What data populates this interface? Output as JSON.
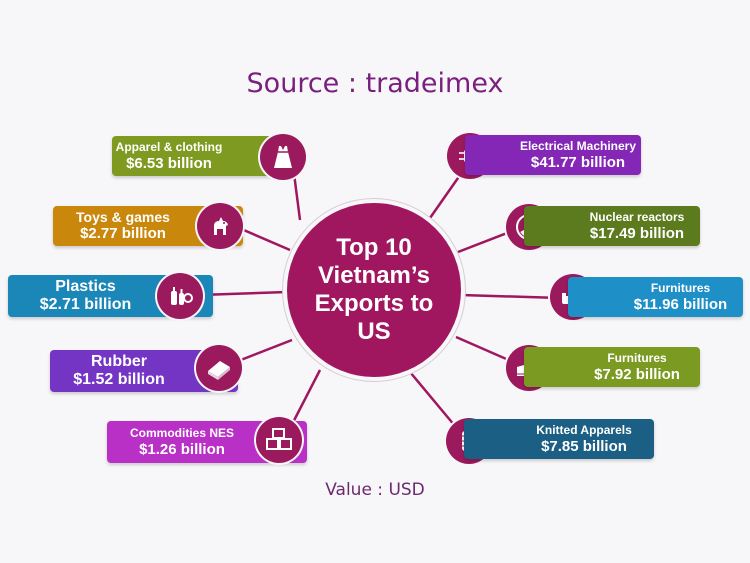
{
  "source": "Source : tradeimex",
  "center": "Top 10\nVietnam’s\nExports to\nUS",
  "value_note": "Value : USD",
  "colors": {
    "hub": "#a0165f",
    "line": "#a0165f",
    "icon_bg": "#9b1a5e"
  },
  "left_items": [
    {
      "label": "Apparel & clothing",
      "value": "$6.53 billion",
      "color": "#7e9a20",
      "icon": "dress-icon"
    },
    {
      "label": "Toys & games",
      "value": "$2.77 billion",
      "color": "#c9880b",
      "icon": "unicorn-toy-icon"
    },
    {
      "label": "Plastics",
      "value": "$2.71 billion",
      "color": "#1a87b8",
      "icon": "plastic-bottles-icon"
    },
    {
      "label": "Rubber",
      "value": "$1.52 billion",
      "color": "#7434c4",
      "icon": "rubber-sheet-icon"
    },
    {
      "label": "Commodities NES",
      "value": "$1.26 billion",
      "color": "#b830c6",
      "icon": "boxes-icon"
    }
  ],
  "right_items": [
    {
      "label": "Electrical Machinery",
      "value": "$41.77 billion",
      "color": "#8427b6",
      "icon": "circuit-chip-icon"
    },
    {
      "label": "Nuclear reactors",
      "value": "$17.49 billion",
      "color": "#5c7a1e",
      "icon": "radiation-icon"
    },
    {
      "label": "Furnitures",
      "value": "$11.96 billion",
      "color": "#1f8fc7",
      "icon": "sofa-lamp-icon"
    },
    {
      "label": "Furnitures",
      "value": "$7.92 billion",
      "color": "#7b9a22",
      "icon": "sneaker-icon"
    },
    {
      "label": "Knitted Apparels",
      "value": "$7.85 billion",
      "color": "#1b5f85",
      "icon": "knitted-sweater-icon"
    }
  ]
}
